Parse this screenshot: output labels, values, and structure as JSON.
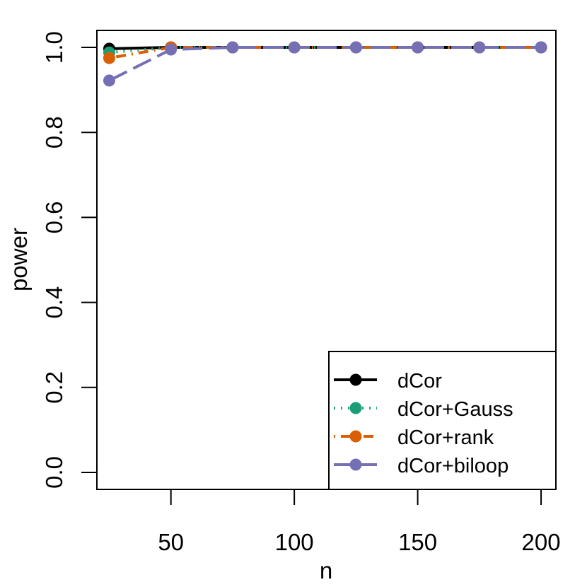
{
  "chart_data": {
    "type": "line",
    "xlabel": "n",
    "ylabel": "power",
    "xlim": [
      20,
      206
    ],
    "ylim": [
      -0.04,
      1.04
    ],
    "x_ticks": [
      50,
      100,
      150,
      200
    ],
    "y_ticks": [
      0.0,
      0.2,
      0.4,
      0.6,
      0.8,
      1.0
    ],
    "x_tick_labels": [
      "50",
      "100",
      "150",
      "200"
    ],
    "y_tick_labels": [
      "0.0",
      "0.2",
      "0.4",
      "0.6",
      "0.8",
      "1.0"
    ],
    "grid": false,
    "legend_position": "bottom-right",
    "x": [
      25,
      50,
      75,
      100,
      125,
      150,
      175,
      200
    ],
    "series": [
      {
        "name": "dCor",
        "color": "#000000",
        "dash": "solid",
        "values": [
          0.997,
          1.0,
          1.0,
          1.0,
          1.0,
          1.0,
          1.0,
          1.0
        ]
      },
      {
        "name": "dCor+Gauss",
        "color": "#1b9e77",
        "dash": "dotted",
        "values": [
          0.988,
          1.0,
          1.0,
          1.0,
          1.0,
          1.0,
          1.0,
          1.0
        ]
      },
      {
        "name": "dCor+rank",
        "color": "#d95f02",
        "dash": "dotdash",
        "values": [
          0.975,
          1.0,
          1.0,
          1.0,
          1.0,
          1.0,
          1.0,
          1.0
        ]
      },
      {
        "name": "dCor+biloop",
        "color": "#7570b3",
        "dash": "longdash",
        "values": [
          0.922,
          0.995,
          1.0,
          1.0,
          1.0,
          1.0,
          1.0,
          1.0
        ]
      }
    ]
  }
}
